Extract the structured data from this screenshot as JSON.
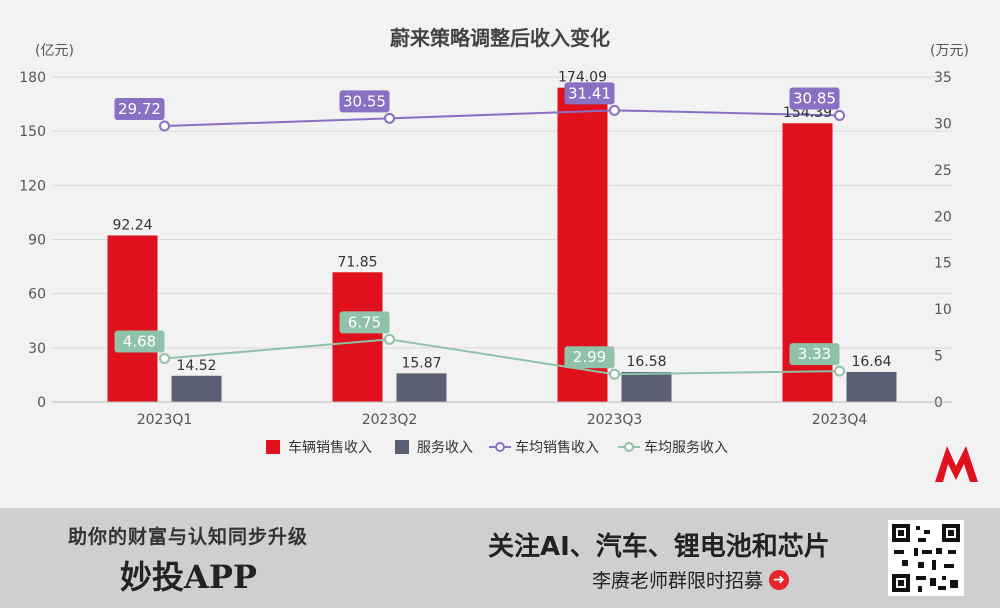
{
  "chart_data": {
    "type": "bar",
    "title": "蔚来策略调整后收入变化",
    "categories": [
      "2023Q1",
      "2023Q2",
      "2023Q3",
      "2023Q4"
    ],
    "y_left_unit": "(亿元)",
    "y_right_unit": "(万元)",
    "y_left_ticks": [
      "0",
      "30",
      "60",
      "90",
      "120",
      "150",
      "180"
    ],
    "y_right_ticks": [
      "0",
      "5",
      "10",
      "15",
      "20",
      "25",
      "30",
      "35"
    ],
    "ylim_left": [
      0,
      180
    ],
    "ylim_right": [
      0,
      35
    ],
    "grid": true,
    "legend_position": "bottom",
    "series": [
      {
        "name": "车辆销售收入",
        "type": "bar",
        "axis": "left",
        "color": "#e0101c",
        "values": [
          92.24,
          71.85,
          174.09,
          154.39
        ],
        "labels": [
          "92.24",
          "71.85",
          "174.09",
          "154.39"
        ]
      },
      {
        "name": "服务收入",
        "type": "bar",
        "axis": "left",
        "color": "#5b5f73",
        "values": [
          14.52,
          15.87,
          16.58,
          16.64
        ],
        "labels": [
          "14.52",
          "15.87",
          "16.58",
          "16.64"
        ]
      },
      {
        "name": "车均销售收入",
        "type": "line",
        "axis": "right",
        "color": "#8a70c2",
        "values": [
          29.72,
          30.55,
          31.41,
          30.85
        ],
        "labels": [
          "29.72",
          "30.55",
          "31.41",
          "30.85"
        ]
      },
      {
        "name": "车均服务收入",
        "type": "line",
        "axis": "right",
        "color": "#8fc2a8",
        "values": [
          4.68,
          6.75,
          2.99,
          3.33
        ],
        "labels": [
          "4.68",
          "6.75",
          "2.99",
          "3.33"
        ]
      }
    ]
  },
  "banner": {
    "slogan": "助你的财富与认知同步升级",
    "app_name": "妙投APP",
    "headline": "关注AI、汽车、锂电池和芯片",
    "subline": "李赓老师群限时招募",
    "arrow": "➜"
  },
  "colors": {
    "logo_red": "#e0101c",
    "grid": "#d8d8d8"
  }
}
